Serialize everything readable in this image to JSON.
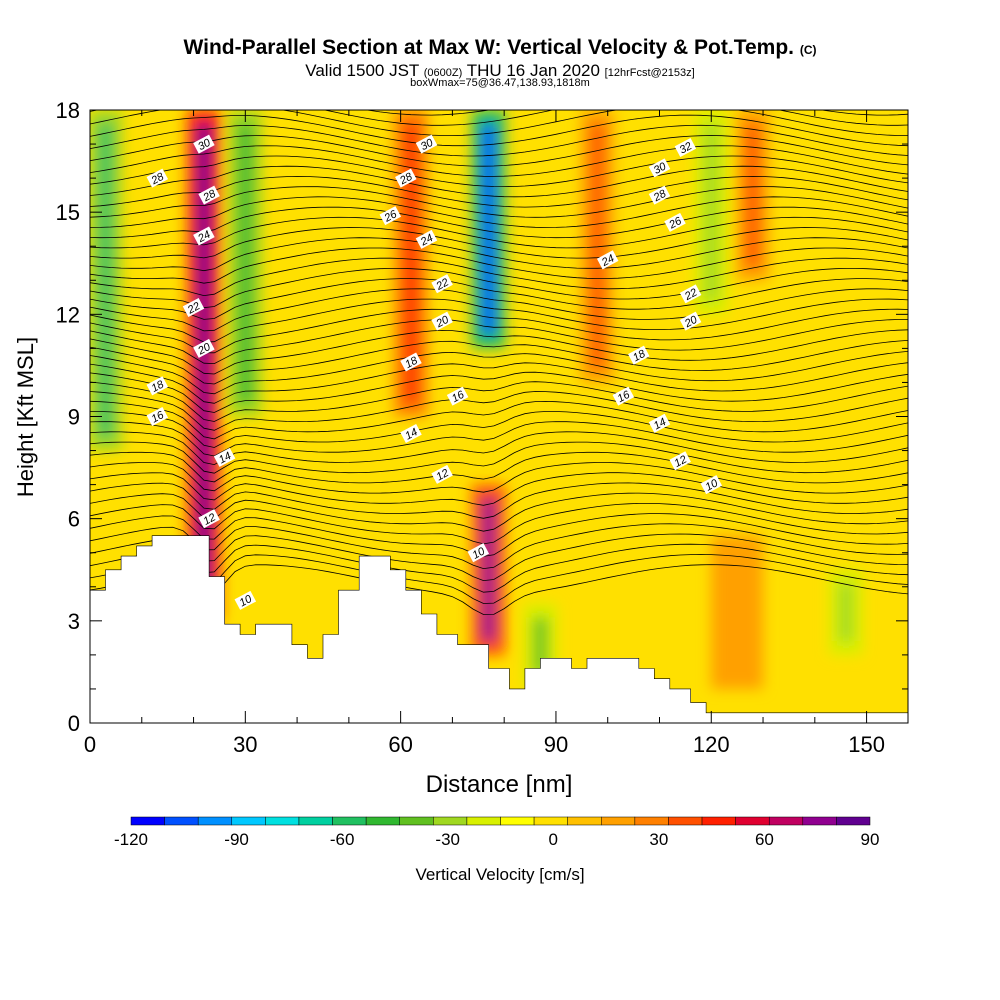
{
  "header": {
    "title": "Wind-Parallel Section at Max W: Vertical Velocity & Pot.Temp.",
    "title_mark": "(C)",
    "valid_prefix": "Valid 1500 JST",
    "valid_zulu": "(0600Z)",
    "valid_date": "THU 16 Jan 2020",
    "forecast_note": "[12hrFcst@2153z]",
    "box_note": "boxWmax=75@36.47,138.93,1818m"
  },
  "chart_data": {
    "type": "heatmap",
    "xlabel": "Distance [nm]",
    "ylabel": "Height [Kft MSL]",
    "xlim": [
      0,
      158
    ],
    "ylim": [
      0,
      18
    ],
    "x_ticks": [
      "0",
      "30",
      "60",
      "90",
      "120",
      "150"
    ],
    "y_ticks": [
      "0",
      "3",
      "6",
      "9",
      "12",
      "15",
      "18"
    ],
    "colorbar": {
      "label": "Vertical Velocity [cm/s]",
      "ticks": [
        "-120",
        "-90",
        "-60",
        "-30",
        "0",
        "30",
        "60",
        "90"
      ],
      "min": -120,
      "max": 90,
      "colors": [
        "#0000ff",
        "#0050ff",
        "#0090ff",
        "#00c8ff",
        "#00e0e0",
        "#00d0a0",
        "#20c060",
        "#30b830",
        "#60c020",
        "#a0d820",
        "#d8f000",
        "#ffff00",
        "#ffe000",
        "#ffc000",
        "#ffa000",
        "#ff8000",
        "#ff5000",
        "#ff2000",
        "#e00030",
        "#c00060",
        "#900090",
        "#600090"
      ]
    },
    "w_features": [
      {
        "name": "updraft",
        "x": 22,
        "z_range": [
          3,
          18
        ],
        "w": 85
      },
      {
        "name": "downdraft",
        "x": 30,
        "z_range": [
          9,
          18
        ],
        "w": -45
      },
      {
        "name": "downdraft",
        "x": 3,
        "z_range": [
          8,
          18
        ],
        "w": -55
      },
      {
        "name": "updraft",
        "x": 62,
        "z_range": [
          9,
          18
        ],
        "w": 45
      },
      {
        "name": "downdraft",
        "x": 77,
        "z_range": [
          11,
          18
        ],
        "w": -110
      },
      {
        "name": "updraft",
        "x": 77,
        "z_range": [
          2,
          7
        ],
        "w": 75
      },
      {
        "name": "downdraft",
        "x": 87,
        "z_range": [
          1,
          3.5
        ],
        "w": -40
      },
      {
        "name": "updraft",
        "x": 98,
        "z_range": [
          10,
          18
        ],
        "w": 35
      },
      {
        "name": "downdraft",
        "x": 120,
        "z_range": [
          12,
          18
        ],
        "w": -30
      },
      {
        "name": "updraft",
        "x": 128,
        "z_range": [
          13,
          18
        ],
        "w": 40
      },
      {
        "name": "downdraft",
        "x": 146,
        "z_range": [
          2,
          4.5
        ],
        "w": -30
      }
    ],
    "theta_contour_labels": [
      {
        "x": 22,
        "z": 17,
        "text": "30"
      },
      {
        "x": 13,
        "z": 16,
        "text": "28"
      },
      {
        "x": 23,
        "z": 15.5,
        "text": "28"
      },
      {
        "x": 22,
        "z": 14.3,
        "text": "24"
      },
      {
        "x": 20,
        "z": 12.2,
        "text": "22"
      },
      {
        "x": 22,
        "z": 11,
        "text": "20"
      },
      {
        "x": 13,
        "z": 9.9,
        "text": "18"
      },
      {
        "x": 13,
        "z": 9,
        "text": "16"
      },
      {
        "x": 26,
        "z": 7.8,
        "text": "14"
      },
      {
        "x": 23,
        "z": 6,
        "text": "12"
      },
      {
        "x": 30,
        "z": 3.6,
        "text": "10"
      },
      {
        "x": 65,
        "z": 17,
        "text": "30"
      },
      {
        "x": 61,
        "z": 16,
        "text": "28"
      },
      {
        "x": 58,
        "z": 14.9,
        "text": "26"
      },
      {
        "x": 65,
        "z": 14.2,
        "text": "24"
      },
      {
        "x": 68,
        "z": 12.9,
        "text": "22"
      },
      {
        "x": 68,
        "z": 11.8,
        "text": "20"
      },
      {
        "x": 62,
        "z": 10.6,
        "text": "18"
      },
      {
        "x": 71,
        "z": 9.6,
        "text": "16"
      },
      {
        "x": 62,
        "z": 8.5,
        "text": "14"
      },
      {
        "x": 68,
        "z": 7.3,
        "text": "12"
      },
      {
        "x": 75,
        "z": 5,
        "text": "10"
      },
      {
        "x": 115,
        "z": 16.9,
        "text": "32"
      },
      {
        "x": 110,
        "z": 16.3,
        "text": "30"
      },
      {
        "x": 110,
        "z": 15.5,
        "text": "28"
      },
      {
        "x": 113,
        "z": 14.7,
        "text": "26"
      },
      {
        "x": 100,
        "z": 13.6,
        "text": "24"
      },
      {
        "x": 116,
        "z": 12.6,
        "text": "22"
      },
      {
        "x": 116,
        "z": 11.8,
        "text": "20"
      },
      {
        "x": 106,
        "z": 10.8,
        "text": "18"
      },
      {
        "x": 103,
        "z": 9.6,
        "text": "16"
      },
      {
        "x": 110,
        "z": 8.8,
        "text": "14"
      },
      {
        "x": 114,
        "z": 7.7,
        "text": "12"
      },
      {
        "x": 120,
        "z": 7,
        "text": "10"
      }
    ],
    "terrain": [
      [
        0,
        3.9
      ],
      [
        3,
        3.9
      ],
      [
        3,
        4.5
      ],
      [
        6,
        4.5
      ],
      [
        6,
        4.9
      ],
      [
        9,
        4.9
      ],
      [
        9,
        5.2
      ],
      [
        12,
        5.2
      ],
      [
        12,
        5.5
      ],
      [
        23,
        5.5
      ],
      [
        23,
        4.3
      ],
      [
        26,
        4.3
      ],
      [
        26,
        2.9
      ],
      [
        29,
        2.9
      ],
      [
        29,
        2.6
      ],
      [
        32,
        2.6
      ],
      [
        32,
        2.9
      ],
      [
        39,
        2.9
      ],
      [
        39,
        2.3
      ],
      [
        42,
        2.3
      ],
      [
        42,
        1.9
      ],
      [
        45,
        1.9
      ],
      [
        45,
        2.6
      ],
      [
        48,
        2.6
      ],
      [
        48,
        3.9
      ],
      [
        52,
        3.9
      ],
      [
        52,
        4.9
      ],
      [
        58,
        4.9
      ],
      [
        58,
        4.5
      ],
      [
        61,
        4.5
      ],
      [
        61,
        3.9
      ],
      [
        64,
        3.9
      ],
      [
        64,
        3.2
      ],
      [
        67,
        3.2
      ],
      [
        67,
        2.6
      ],
      [
        71,
        2.6
      ],
      [
        71,
        2.3
      ],
      [
        77,
        2.3
      ],
      [
        77,
        1.6
      ],
      [
        81,
        1.6
      ],
      [
        81,
        1.0
      ],
      [
        84,
        1.0
      ],
      [
        84,
        1.6
      ],
      [
        87,
        1.6
      ],
      [
        87,
        1.9
      ],
      [
        93,
        1.9
      ],
      [
        93,
        1.6
      ],
      [
        96,
        1.6
      ],
      [
        96,
        1.9
      ],
      [
        106,
        1.9
      ],
      [
        106,
        1.6
      ],
      [
        109,
        1.6
      ],
      [
        109,
        1.3
      ],
      [
        112,
        1.3
      ],
      [
        112,
        1.0
      ],
      [
        116,
        1.0
      ],
      [
        116,
        0.6
      ],
      [
        119,
        0.6
      ],
      [
        119,
        0.3
      ],
      [
        158,
        0.3
      ]
    ]
  }
}
